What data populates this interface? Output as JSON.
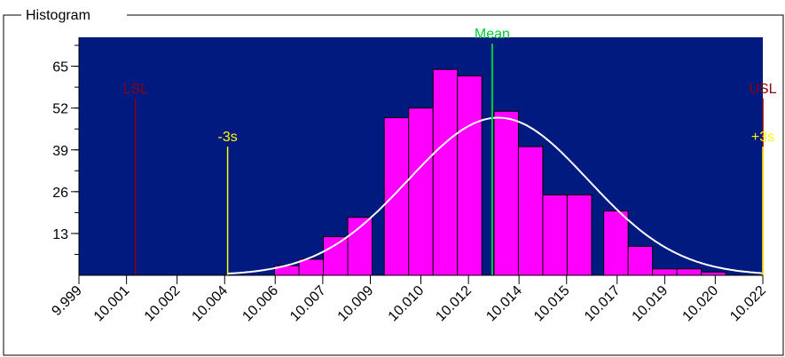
{
  "panel": {
    "title": "Histogram"
  },
  "colors": {
    "plot_bg": "#001a80",
    "bar_fill": "#ff00ff",
    "bar_stroke": "#000000",
    "curve": "#ffffff",
    "spec_line": "#8b0000",
    "sigma_line": "#ffff00",
    "mean_line": "#00cc33"
  },
  "chart_data": {
    "type": "bar",
    "title": "Histogram",
    "xlabel": "",
    "ylabel": "",
    "xlim": [
      9.999,
      10.022
    ],
    "ylim": [
      0,
      74
    ],
    "x_ticks": [
      "9.999",
      "10.001",
      "10.002",
      "10.004",
      "10.006",
      "10.007",
      "10.009",
      "10.010",
      "10.012",
      "10.014",
      "10.015",
      "10.017",
      "10.019",
      "10.020",
      "10.022"
    ],
    "x_tick_values": [
      9.999,
      10.0006,
      10.0023,
      10.0039,
      10.0056,
      10.0072,
      10.0088,
      10.0105,
      10.0121,
      10.0138,
      10.0154,
      10.0171,
      10.0187,
      10.0204,
      10.022
    ],
    "y_ticks": [
      13,
      26,
      39,
      52,
      65
    ],
    "bin_width": 0.00082,
    "bins": [
      {
        "x": 10.00599,
        "value": 3
      },
      {
        "x": 10.00681,
        "value": 5
      },
      {
        "x": 10.00763,
        "value": 12
      },
      {
        "x": 10.00845,
        "value": 18
      },
      {
        "x": 10.00968,
        "value": 49
      },
      {
        "x": 10.0105,
        "value": 52
      },
      {
        "x": 10.01132,
        "value": 64
      },
      {
        "x": 10.01214,
        "value": 62
      },
      {
        "x": 10.01337,
        "value": 51
      },
      {
        "x": 10.01419,
        "value": 40
      },
      {
        "x": 10.01501,
        "value": 25
      },
      {
        "x": 10.01583,
        "value": 25
      },
      {
        "x": 10.01706,
        "value": 20
      },
      {
        "x": 10.01788,
        "value": 9
      },
      {
        "x": 10.0187,
        "value": 2
      },
      {
        "x": 10.01952,
        "value": 2
      },
      {
        "x": 10.02034,
        "value": 1
      }
    ],
    "normal_curve": {
      "mean": 10.0131,
      "sd": 0.00302,
      "peak": 49
    },
    "reference_lines": [
      {
        "label": "LSL",
        "x": 10.0009,
        "height": 55,
        "kind": "spec"
      },
      {
        "label": "-3s",
        "x": 10.004,
        "height": 40,
        "kind": "sigma"
      },
      {
        "label": "Mean",
        "x": 10.0129,
        "height": 72,
        "kind": "mean"
      },
      {
        "label": "USL",
        "x": 10.022,
        "height": 55,
        "kind": "spec"
      },
      {
        "label": "+3s",
        "x": 10.022,
        "height": 40,
        "kind": "sigma"
      }
    ]
  }
}
